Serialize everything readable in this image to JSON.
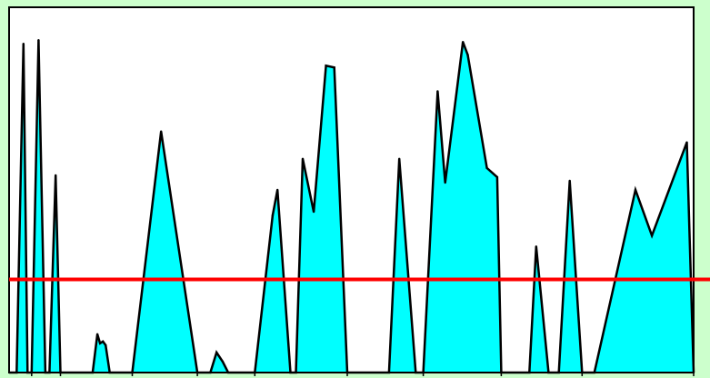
{
  "chart_data": {
    "type": "area",
    "title": "",
    "xlabel": "",
    "ylabel": "",
    "xlim": [
      0,
      100
    ],
    "ylim": [
      0,
      100
    ],
    "grid": false,
    "legend": "none",
    "colors": {
      "page_background": "#ccffcc",
      "plot_background": "#ffffff",
      "fill": "#00ffff",
      "outline": "#000000",
      "threshold_line": "#ff0000",
      "frame": "#000000"
    },
    "threshold": 25.5,
    "series": [
      {
        "points": [
          [
            0.0,
            0
          ],
          [
            1.1,
            0
          ],
          [
            2.1,
            90
          ],
          [
            2.7,
            0
          ],
          [
            3.3,
            0
          ],
          [
            4.3,
            91
          ],
          [
            5.3,
            0
          ],
          [
            5.9,
            0
          ],
          [
            6.8,
            54
          ],
          [
            7.5,
            0
          ],
          [
            12.2,
            0
          ],
          [
            12.9,
            10.5
          ],
          [
            13.3,
            8
          ],
          [
            13.7,
            8.5
          ],
          [
            14.1,
            7.5
          ],
          [
            14.7,
            0
          ],
          [
            18.0,
            0
          ],
          [
            22.2,
            66
          ],
          [
            27.5,
            0
          ],
          [
            29.4,
            0
          ],
          [
            30.3,
            5.5
          ],
          [
            31.2,
            3
          ],
          [
            32.0,
            0
          ],
          [
            35.9,
            0
          ],
          [
            38.5,
            43
          ],
          [
            39.2,
            50
          ],
          [
            41.1,
            0
          ],
          [
            41.9,
            0
          ],
          [
            42.9,
            58.5
          ],
          [
            44.5,
            44
          ],
          [
            46.3,
            84
          ],
          [
            47.5,
            83.5
          ],
          [
            49.4,
            0
          ],
          [
            55.5,
            0
          ],
          [
            57.0,
            58.5
          ],
          [
            59.4,
            0
          ],
          [
            60.5,
            0
          ],
          [
            62.6,
            77
          ],
          [
            63.7,
            52
          ],
          [
            66.3,
            90.5
          ],
          [
            67.0,
            87
          ],
          [
            69.8,
            56
          ],
          [
            71.3,
            53.5
          ],
          [
            71.9,
            0
          ],
          [
            76.0,
            0
          ],
          [
            77.0,
            34.5
          ],
          [
            78.8,
            0
          ],
          [
            80.3,
            0
          ],
          [
            81.9,
            52.5
          ],
          [
            83.7,
            0
          ],
          [
            85.5,
            0
          ],
          [
            91.5,
            50
          ],
          [
            93.9,
            37.5
          ],
          [
            99.0,
            63
          ],
          [
            100.0,
            0
          ]
        ]
      }
    ],
    "x_ticks": [
      3.3,
      7.5,
      18.0,
      27.5,
      35.9,
      49.4,
      60.5,
      71.9,
      83.7,
      100.0
    ]
  }
}
